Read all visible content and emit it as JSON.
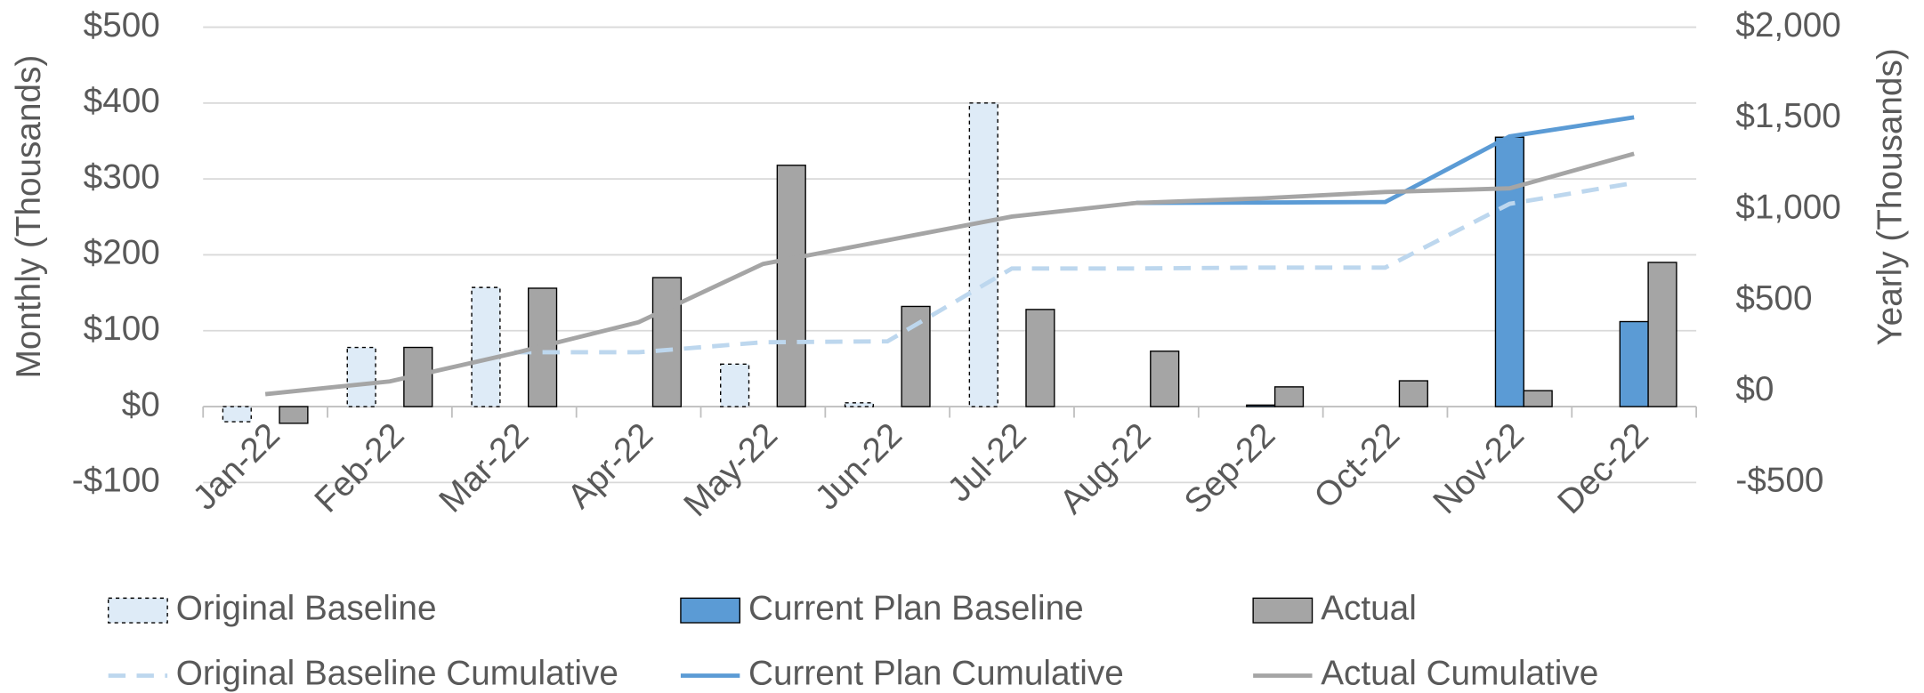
{
  "chart_data": {
    "type": "bar",
    "y_label": "Monthly (Thousands)",
    "y2_label": "Yearly (Thousands)",
    "categories": [
      "Jan-22",
      "Feb-22",
      "Mar-22",
      "Apr-22",
      "May-22",
      "Jun-22",
      "Jul-22",
      "Aug-22",
      "Sep-22",
      "Oct-22",
      "Nov-22",
      "Dec-22"
    ],
    "ylim": [
      -100,
      500
    ],
    "yticks": [
      {
        "value": -100,
        "label": "-$100"
      },
      {
        "value": 0,
        "label": "$0"
      },
      {
        "value": 100,
        "label": "$100"
      },
      {
        "value": 200,
        "label": "$200"
      },
      {
        "value": 300,
        "label": "$300"
      },
      {
        "value": 400,
        "label": "$400"
      },
      {
        "value": 500,
        "label": "$500"
      }
    ],
    "y2lim": [
      -500,
      2000
    ],
    "y2ticks": [
      {
        "value": -500,
        "label": "-$500"
      },
      {
        "value": 0,
        "label": "$0"
      },
      {
        "value": 500,
        "label": "$500"
      },
      {
        "value": 1000,
        "label": "$1,000"
      },
      {
        "value": 1500,
        "label": "$1,500"
      },
      {
        "value": 2000,
        "label": "$2,000"
      }
    ],
    "grid": true,
    "legend": "bottom",
    "series": [
      {
        "name": "Original Baseline",
        "style": "bar",
        "color": "#deebf7",
        "dashed": true,
        "values": [
          -20,
          78,
          157,
          0,
          56,
          5,
          400,
          0,
          0,
          0,
          0,
          0
        ]
      },
      {
        "name": "Current Plan Baseline",
        "style": "bar",
        "color": "#5b9bd5",
        "values": [
          0,
          0,
          0,
          0,
          0,
          0,
          0,
          0,
          2,
          0,
          355,
          112
        ]
      },
      {
        "name": "Actual",
        "style": "bar",
        "color": "#a5a5a5",
        "values": [
          -22,
          78,
          156,
          170,
          318,
          132,
          128,
          73,
          26,
          34,
          21,
          190
        ]
      },
      {
        "name": "Original Baseline Cumulative",
        "style": "line",
        "axis": "y2",
        "color": "#bdd7ee",
        "dashed": true,
        "values": [
          null,
          null,
          215,
          215,
          270,
          275,
          675,
          675,
          680,
          680,
          1030,
          1145
        ]
      },
      {
        "name": "Current Plan Cumulative",
        "style": "line",
        "axis": "y2",
        "color": "#5b9bd5",
        "values": [
          null,
          null,
          null,
          null,
          null,
          null,
          null,
          1035,
          1037,
          1040,
          1400,
          1505
        ]
      },
      {
        "name": "Actual Cumulative",
        "style": "line",
        "axis": "y2",
        "color": "#a5a5a5",
        "values": [
          -15,
          55,
          210,
          380,
          700,
          830,
          960,
          1035,
          1060,
          1095,
          1115,
          1305
        ]
      }
    ]
  }
}
